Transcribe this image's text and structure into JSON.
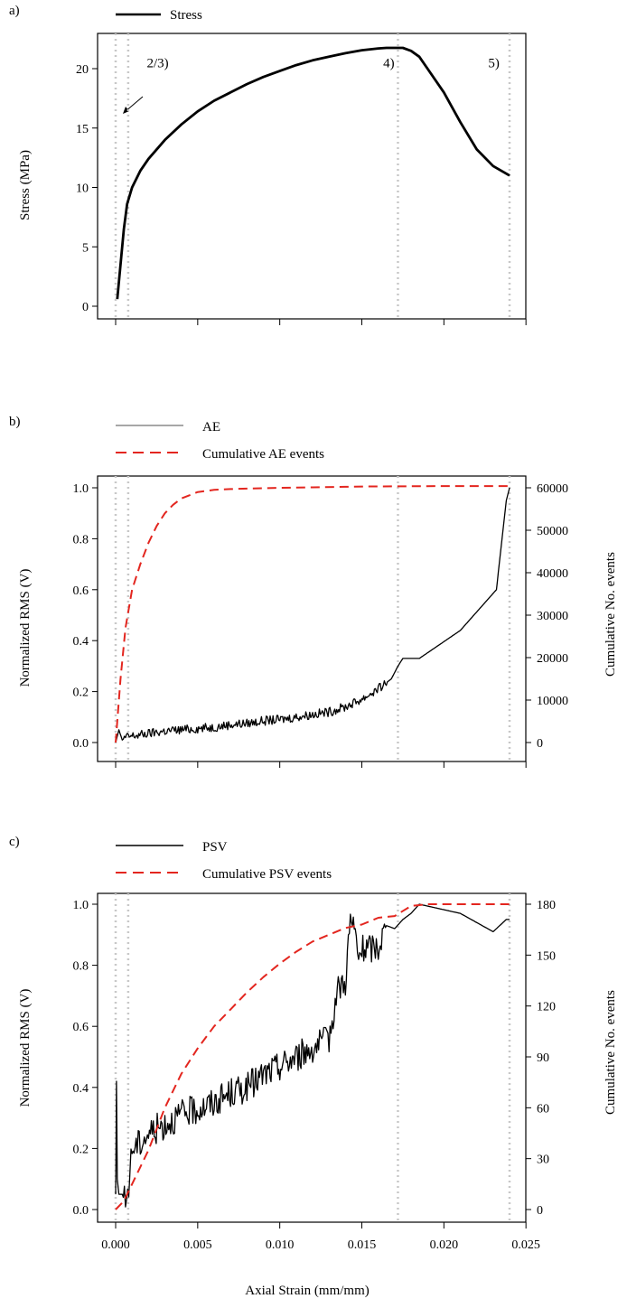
{
  "colors": {
    "stress": "#000000",
    "cumulative": "#e3261f",
    "marker": "#c8c8c8"
  },
  "x_axis": {
    "label": "Axial Strain (mm/mm)",
    "ticks": [
      0.0,
      0.005,
      0.01,
      0.015,
      0.02,
      0.025
    ],
    "tick_labels": [
      "0.000",
      "0.005",
      "0.010",
      "0.015",
      "0.020",
      "0.025"
    ]
  },
  "markers": [
    0.0,
    0.0006,
    0.0172,
    0.024
  ],
  "chart_data": [
    {
      "panel": "a)",
      "type": "line",
      "legend": [
        "Stress"
      ],
      "ylabel": "Stress (MPa)",
      "ylim": [
        0,
        22
      ],
      "yticks": [
        0,
        5,
        10,
        15,
        20
      ],
      "ytick_labels": [
        "0",
        "5",
        "10",
        "15",
        "20"
      ],
      "annotations": [
        {
          "text": "2/3)",
          "x": 0.0019,
          "y": 20.1
        },
        {
          "text": "4)",
          "x": 0.0163,
          "y": 20.1
        },
        {
          "text": "5)",
          "x": 0.0227,
          "y": 20.1
        }
      ],
      "series": [
        {
          "name": "Stress",
          "style": "solid",
          "color": "#000000",
          "x": [
            0.0001,
            0.0003,
            0.0005,
            0.0007,
            0.001,
            0.0015,
            0.002,
            0.003,
            0.004,
            0.005,
            0.006,
            0.007,
            0.008,
            0.009,
            0.01,
            0.011,
            0.012,
            0.013,
            0.014,
            0.015,
            0.016,
            0.0165,
            0.017,
            0.0175,
            0.018,
            0.0185,
            0.019,
            0.02,
            0.021,
            0.022,
            0.023,
            0.024
          ],
          "y": [
            0.6,
            3.5,
            6.5,
            8.6,
            10.0,
            11.4,
            12.4,
            14.0,
            15.3,
            16.4,
            17.3,
            18.0,
            18.7,
            19.3,
            19.8,
            20.3,
            20.7,
            21.0,
            21.3,
            21.55,
            21.7,
            21.75,
            21.75,
            21.75,
            21.5,
            21.0,
            20.0,
            18.0,
            15.5,
            13.2,
            11.8,
            11.0
          ]
        }
      ]
    },
    {
      "panel": "b)",
      "type": "line",
      "legend": [
        "AE",
        "Cumulative AE events"
      ],
      "ylabel": "Normalized RMS (V)",
      "ylabel_right": "Cumulative No. events",
      "ylim": [
        0,
        1.0
      ],
      "ylim_right": [
        0,
        60000
      ],
      "yticks": [
        0.0,
        0.2,
        0.4,
        0.6,
        0.8,
        1.0
      ],
      "ytick_labels": [
        "0.0",
        "0.2",
        "0.4",
        "0.6",
        "0.8",
        "1.0"
      ],
      "yticks_right": [
        0,
        10000,
        20000,
        30000,
        40000,
        50000,
        60000
      ],
      "ytick_labels_right": [
        "0",
        "10000",
        "20000",
        "30000",
        "40000",
        "50000",
        "60000"
      ],
      "series": [
        {
          "name": "AE",
          "style": "solid",
          "color": "#000000",
          "axis": "left",
          "x": [
            0.0,
            0.0002,
            0.0004,
            0.0006,
            0.001,
            0.002,
            0.003,
            0.004,
            0.005,
            0.006,
            0.007,
            0.008,
            0.009,
            0.01,
            0.011,
            0.012,
            0.013,
            0.014,
            0.015,
            0.016,
            0.0168,
            0.0172,
            0.0175,
            0.018,
            0.0185,
            0.021,
            0.0232,
            0.0238,
            0.024
          ],
          "y": [
            0.0,
            0.05,
            0.01,
            0.02,
            0.025,
            0.035,
            0.045,
            0.05,
            0.055,
            0.06,
            0.07,
            0.075,
            0.085,
            0.09,
            0.1,
            0.11,
            0.12,
            0.14,
            0.17,
            0.21,
            0.25,
            0.3,
            0.33,
            0.33,
            0.33,
            0.44,
            0.6,
            0.95,
            1.0
          ],
          "noise": 0.018
        },
        {
          "name": "Cumulative AE events",
          "style": "dashed",
          "color": "#e3261f",
          "axis": "right",
          "x": [
            0.0,
            0.0003,
            0.0006,
            0.001,
            0.0015,
            0.002,
            0.0025,
            0.003,
            0.0035,
            0.004,
            0.005,
            0.006,
            0.007,
            0.008,
            0.01,
            0.012,
            0.015,
            0.02,
            0.024
          ],
          "y": [
            0,
            15000,
            27000,
            36000,
            42000,
            47000,
            51000,
            54000,
            56000,
            57500,
            59000,
            59500,
            59700,
            59800,
            60000,
            60100,
            60300,
            60400,
            60400
          ]
        }
      ]
    },
    {
      "panel": "c)",
      "type": "line",
      "legend": [
        "PSV",
        "Cumulative PSV events"
      ],
      "ylabel": "Normalized RMS (V)",
      "ylabel_right": "Cumulative No. events",
      "ylim": [
        0,
        1.0
      ],
      "ylim_right": [
        0,
        180
      ],
      "yticks": [
        0.0,
        0.2,
        0.4,
        0.6,
        0.8,
        1.0
      ],
      "ytick_labels": [
        "0.0",
        "0.2",
        "0.4",
        "0.6",
        "0.8",
        "1.0"
      ],
      "yticks_right": [
        0,
        30,
        60,
        90,
        120,
        150,
        180
      ],
      "ytick_labels_right": [
        "0",
        "30",
        "60",
        "90",
        "120",
        "150",
        "180"
      ],
      "series": [
        {
          "name": "PSV",
          "style": "solid",
          "color": "#000000",
          "axis": "left",
          "x": [
            0.0,
            5e-05,
            0.0001,
            0.0002,
            0.0004,
            0.0006,
            0.0008,
            0.001,
            0.0015,
            0.002,
            0.003,
            0.004,
            0.005,
            0.006,
            0.007,
            0.008,
            0.009,
            0.01,
            0.011,
            0.012,
            0.0128,
            0.013,
            0.0135,
            0.014,
            0.0143,
            0.0146,
            0.0148,
            0.015,
            0.016,
            0.0165,
            0.017,
            0.0175,
            0.018,
            0.0185,
            0.021,
            0.023,
            0.0238,
            0.024
          ],
          "y": [
            0.05,
            0.42,
            0.1,
            0.05,
            0.05,
            0.02,
            0.08,
            0.2,
            0.22,
            0.25,
            0.28,
            0.31,
            0.33,
            0.35,
            0.38,
            0.4,
            0.44,
            0.47,
            0.5,
            0.53,
            0.55,
            0.56,
            0.72,
            0.75,
            0.95,
            0.9,
            0.82,
            0.85,
            0.86,
            0.93,
            0.92,
            0.95,
            0.97,
            1.0,
            0.97,
            0.91,
            0.95,
            0.95
          ],
          "noise": 0.05
        },
        {
          "name": "Cumulative PSV events",
          "style": "dashed",
          "color": "#e3261f",
          "axis": "right",
          "x": [
            0.0,
            0.0005,
            0.001,
            0.002,
            0.003,
            0.004,
            0.005,
            0.006,
            0.007,
            0.008,
            0.009,
            0.01,
            0.011,
            0.012,
            0.013,
            0.014,
            0.015,
            0.016,
            0.017,
            0.018,
            0.019,
            0.02,
            0.022,
            0.024
          ],
          "y": [
            0,
            5,
            15,
            35,
            60,
            80,
            95,
            108,
            118,
            128,
            137,
            145,
            152,
            158,
            162,
            166,
            168,
            172,
            173,
            179,
            180,
            180,
            180,
            180
          ]
        }
      ]
    }
  ]
}
